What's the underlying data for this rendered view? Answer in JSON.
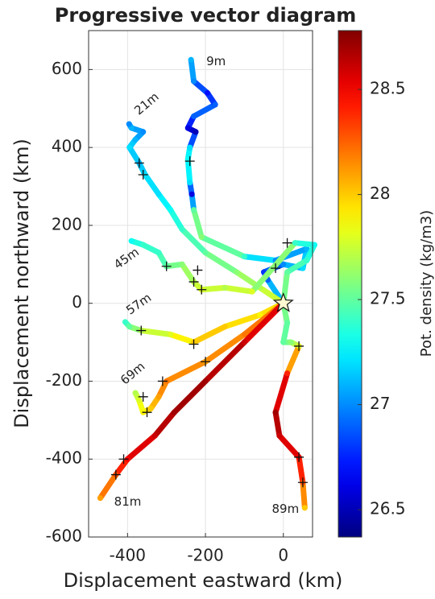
{
  "chart_data": {
    "type": "trajectory",
    "title": "Progressive vector diagram",
    "x_label": "Displacement eastward (km)",
    "y_label": "Displacement northward (km)",
    "colorbar_label": "Pot. density (kg/m3)",
    "colormap": "jet",
    "xlim": [
      -500,
      75
    ],
    "ylim": [
      -600,
      700
    ],
    "xticks": [
      -400,
      -200,
      0
    ],
    "yticks": [
      -600,
      -400,
      -200,
      0,
      200,
      400,
      600
    ],
    "clim": [
      26.37,
      28.78
    ],
    "cticks": [
      26.5,
      27,
      27.5,
      28,
      28.5
    ],
    "grid": true,
    "start": {
      "x": 0,
      "y": 0
    },
    "series": [
      {
        "name": "9m",
        "x": [
          0,
          -40,
          -50,
          0,
          50,
          60,
          -20,
          -100,
          -210,
          -230,
          -235,
          -240,
          -245,
          -240,
          -225,
          -245,
          -230,
          -175,
          -195,
          -230,
          -237
        ],
        "y": [
          0,
          60,
          80,
          100,
          90,
          140,
          110,
          120,
          170,
          240,
          280,
          310,
          370,
          400,
          440,
          450,
          480,
          510,
          540,
          570,
          625
        ],
        "c": [
          27.3,
          26.9,
          26.8,
          27.0,
          27.2,
          27.1,
          27.0,
          27.4,
          27.6,
          27.5,
          26.6,
          27.2,
          27.3,
          27.2,
          26.5,
          26.6,
          26.9,
          26.9,
          26.7,
          27.0,
          27.1
        ],
        "cross_x": [
          -240,
          -20,
          -220
        ],
        "cross_y": [
          365,
          90,
          85
        ]
      },
      {
        "name": "21m",
        "x": [
          0,
          -60,
          -120,
          -200,
          -260,
          -290,
          -320,
          -355,
          -370,
          -395,
          -380,
          -360,
          -390,
          -396
        ],
        "y": [
          0,
          40,
          80,
          130,
          190,
          240,
          280,
          330,
          360,
          400,
          420,
          440,
          450,
          460
        ],
        "c": [
          27.8,
          27.7,
          27.6,
          27.5,
          27.4,
          27.3,
          27.2,
          27.2,
          27.1,
          27.2,
          27.1,
          27.0,
          27.1,
          27.0
        ],
        "cross_x": [
          -360,
          -370
        ],
        "cross_y": [
          330,
          360
        ]
      },
      {
        "name": "45m",
        "x": [
          0,
          10,
          60,
          80,
          30,
          -80,
          -150,
          -210,
          -230,
          -260,
          -300,
          -320,
          -360,
          -390
        ],
        "y": [
          0,
          80,
          110,
          150,
          155,
          30,
          40,
          35,
          55,
          100,
          95,
          130,
          150,
          160
        ],
        "c": [
          27.6,
          27.5,
          27.4,
          27.3,
          27.4,
          27.8,
          27.7,
          27.8,
          27.7,
          27.6,
          27.5,
          27.4,
          27.4,
          27.3
        ],
        "cross_x": [
          -300,
          -230,
          -210,
          10
        ],
        "cross_y": [
          95,
          55,
          35,
          155
        ]
      },
      {
        "name": "57m",
        "x": [
          0,
          -60,
          -150,
          -230,
          -290,
          -365,
          -395,
          -406
        ],
        "y": [
          0,
          -30,
          -60,
          -100,
          -80,
          -70,
          -60,
          -48
        ],
        "c": [
          28.0,
          27.9,
          28.0,
          28.0,
          27.8,
          27.7,
          27.5,
          27.4
        ],
        "cross_x": [
          -365,
          -230
        ],
        "cross_y": [
          -70,
          -105
        ]
      },
      {
        "name": "69m",
        "x": [
          0,
          -100,
          -200,
          -300,
          -320,
          -340,
          -360,
          -370,
          -380
        ],
        "y": [
          0,
          -80,
          -150,
          -200,
          -240,
          -270,
          -280,
          -250,
          -230
        ],
        "c": [
          28.2,
          28.2,
          28.1,
          28.2,
          28.1,
          28.0,
          27.9,
          27.8,
          27.7
        ],
        "cross_x": [
          -310,
          -360,
          -350
        ],
        "cross_y": [
          -200,
          -240,
          -280
        ]
      },
      {
        "name": "81m",
        "x": [
          0,
          -100,
          -200,
          -280,
          -330,
          -400,
          -430,
          -470
        ],
        "y": [
          0,
          -100,
          -200,
          -280,
          -340,
          -400,
          -440,
          -500
        ],
        "c": [
          28.5,
          28.6,
          28.7,
          28.7,
          28.6,
          28.5,
          28.3,
          28.1
        ],
        "cross_x": [
          -410,
          -430,
          -200
        ],
        "cross_y": [
          -400,
          -440,
          -150
        ]
      },
      {
        "name": "89m",
        "x": [
          0,
          10,
          0,
          20,
          40,
          10,
          -20,
          -10,
          40,
          50,
          55
        ],
        "y": [
          0,
          -50,
          -100,
          -100,
          -110,
          -180,
          -280,
          -340,
          -395,
          -460,
          -525
        ],
        "c": [
          27.6,
          27.5,
          27.5,
          27.6,
          27.8,
          28.4,
          28.7,
          28.6,
          28.5,
          28.3,
          28.0
        ],
        "cross_x": [
          40,
          40,
          50
        ],
        "cross_y": [
          -110,
          -395,
          -460
        ]
      }
    ]
  }
}
